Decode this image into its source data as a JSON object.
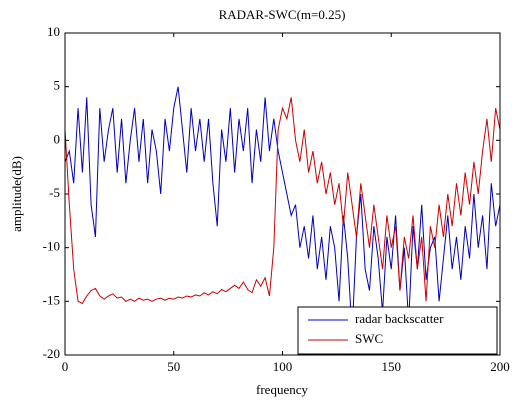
{
  "chart_data": {
    "type": "line",
    "title": "RADAR-SWC(m=0.25)",
    "xlabel": "frequency",
    "ylabel": "amplitude(dB)",
    "x": [
      0,
      2,
      4,
      6,
      8,
      10,
      12,
      14,
      16,
      18,
      20,
      22,
      24,
      26,
      28,
      30,
      32,
      34,
      36,
      38,
      40,
      42,
      44,
      46,
      48,
      50,
      52,
      54,
      56,
      58,
      60,
      62,
      64,
      66,
      68,
      70,
      72,
      74,
      76,
      78,
      80,
      82,
      84,
      86,
      88,
      90,
      92,
      94,
      96,
      98,
      100,
      102,
      104,
      106,
      108,
      110,
      112,
      114,
      116,
      118,
      120,
      122,
      124,
      126,
      128,
      130,
      132,
      134,
      136,
      138,
      140,
      142,
      144,
      146,
      148,
      150,
      152,
      154,
      156,
      158,
      160,
      162,
      164,
      166,
      168,
      170,
      172,
      174,
      176,
      178,
      180,
      182,
      184,
      186,
      188,
      190,
      192,
      194,
      196,
      198,
      200
    ],
    "series": [
      {
        "name": "radar backscatter",
        "color": "#0000bb",
        "values": [
          -2,
          -1,
          -4,
          3,
          -3,
          4,
          -6,
          -9,
          3,
          -2,
          1,
          3,
          -3,
          2,
          -4,
          0,
          3,
          -2,
          2,
          -4,
          1,
          -1,
          -5,
          2,
          -1,
          3,
          5,
          1,
          -3,
          3,
          -1,
          2,
          -2,
          2,
          -4,
          -8,
          1,
          -2,
          3,
          -3,
          2,
          -1,
          3,
          -4,
          1,
          -2,
          4,
          -1,
          2,
          -1,
          -3,
          -5,
          -7,
          -6,
          -10,
          -8,
          -11,
          -7,
          -12,
          -9,
          -13,
          -8,
          -10,
          -15,
          -7,
          -11,
          -18,
          -9,
          -5,
          -12,
          -14,
          -8,
          -11,
          -16,
          -9,
          -12,
          -7,
          -14,
          -10,
          -17,
          -8,
          -12,
          -6,
          -13,
          -10,
          -9,
          -15,
          -11,
          -7,
          -12,
          -9,
          -13,
          -8,
          -11,
          -5,
          -10,
          -7,
          -12,
          -4,
          -8,
          -6
        ]
      },
      {
        "name": "SWC",
        "color": "#cc0000",
        "values": [
          1,
          -6,
          -12,
          -15,
          -15.2,
          -14.5,
          -14,
          -13.8,
          -14.5,
          -14.8,
          -14.5,
          -14.3,
          -14.7,
          -14.6,
          -15,
          -14.8,
          -15,
          -14.7,
          -14.9,
          -14.8,
          -15,
          -14.8,
          -14.7,
          -14.9,
          -14.7,
          -14.8,
          -14.6,
          -14.7,
          -14.5,
          -14.6,
          -14.4,
          -14.5,
          -14.2,
          -14.4,
          -14.1,
          -14.3,
          -13.9,
          -14.1,
          -13.8,
          -13.5,
          -13.8,
          -13.2,
          -13.9,
          -14.2,
          -13,
          -13.6,
          -12.8,
          -14.5,
          -10,
          1,
          3,
          2,
          4,
          0,
          -2,
          1,
          -3,
          -1,
          -4,
          -2,
          -5,
          -3,
          -6,
          -4,
          -8,
          -3,
          -6,
          -9,
          -4,
          -7,
          -10,
          -6,
          -9,
          -12,
          -7,
          -10,
          -8,
          -14,
          -9,
          -11,
          -7,
          -12,
          -9,
          -15,
          -8,
          -10,
          -6,
          -9,
          -5,
          -8,
          -4,
          -7,
          -3,
          -6,
          -2,
          -5,
          -1,
          2,
          -2,
          3,
          1
        ]
      }
    ],
    "xlim": [
      0,
      200
    ],
    "xticks": [
      0,
      50,
      100,
      150,
      200
    ],
    "ylim": [
      -20,
      10
    ],
    "yticks": [
      -20,
      -15,
      -10,
      -5,
      0,
      5,
      10
    ],
    "legend": "southeast"
  }
}
